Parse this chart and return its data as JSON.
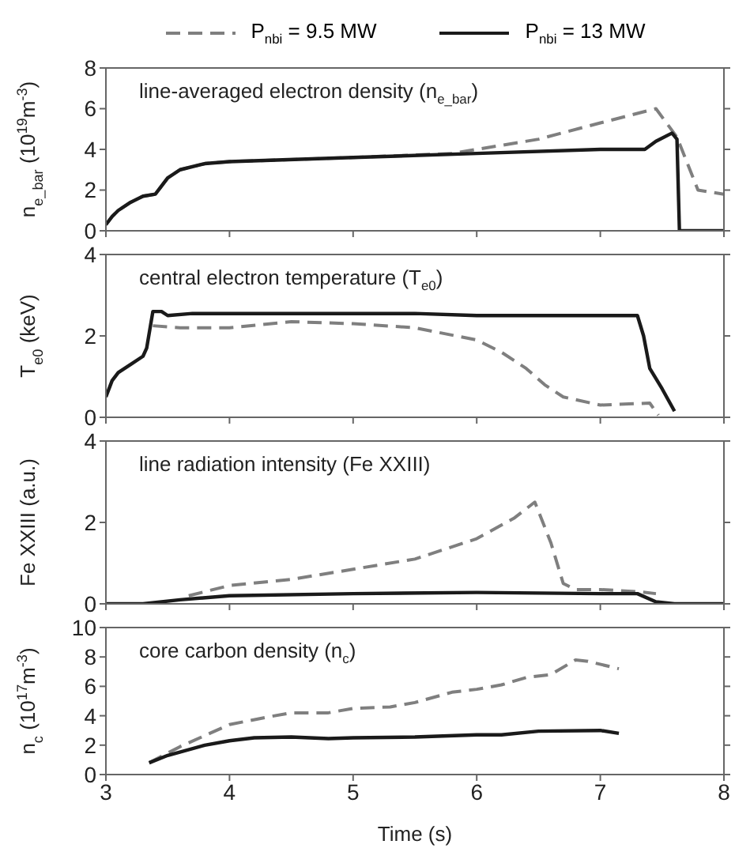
{
  "chart_data": [
    {
      "type": "line",
      "legend": "top",
      "ylabel": "n$_{e_bar}$ (10$^{19}$m$^{-3}$)",
      "annotations": [
        "line-averaged electron density (n$_{e_bar}$)"
      ],
      "xlim": [
        3,
        8
      ],
      "xticks": [
        3,
        4,
        5,
        6,
        7,
        8
      ],
      "ylim": [
        0,
        8
      ],
      "yticks": [
        0,
        2,
        4,
        6,
        8
      ],
      "tick_labels": "y",
      "series": [
        {
          "name": "P$_{nbi}$ = 9.5 MW",
          "color": "#7f7f7f",
          "line_style": "dashed",
          "x": [
            3.0,
            3.05,
            3.1,
            3.2,
            3.3,
            3.4,
            3.45,
            3.5,
            3.6,
            3.8,
            4.0,
            5.0,
            5.8,
            6.0,
            6.5,
            7.0,
            7.45,
            7.62,
            7.79,
            8.0
          ],
          "values": [
            0.3,
            0.7,
            1.0,
            1.4,
            1.7,
            1.8,
            2.2,
            2.6,
            3.0,
            3.3,
            3.4,
            3.6,
            3.8,
            4.0,
            4.5,
            5.3,
            6.0,
            4.6,
            2.0,
            1.8
          ]
        },
        {
          "name": "P$_{nbi}$ = 13 MW",
          "color": "#1a1a1a",
          "line_style": "solid",
          "x": [
            3.0,
            3.05,
            3.1,
            3.2,
            3.3,
            3.4,
            3.45,
            3.5,
            3.6,
            3.8,
            4.0,
            5.0,
            6.0,
            7.0,
            7.36,
            7.45,
            7.58,
            7.62,
            7.64,
            8.0
          ],
          "values": [
            0.3,
            0.7,
            1.0,
            1.4,
            1.7,
            1.8,
            2.2,
            2.6,
            3.0,
            3.3,
            3.4,
            3.6,
            3.8,
            4.0,
            4.0,
            4.4,
            4.8,
            4.5,
            0,
            0
          ]
        }
      ]
    },
    {
      "type": "line",
      "ylabel": "T$_{e0}$ (keV)",
      "annotations": [
        "central electron temperature (T$_{e0}$)"
      ],
      "xlim": [
        3,
        8
      ],
      "xticks": [
        3,
        4,
        5,
        6,
        7,
        8
      ],
      "ylim": [
        0,
        4
      ],
      "yticks": [
        0,
        2,
        4
      ],
      "tick_labels": "y",
      "series": [
        {
          "color": "#7f7f7f",
          "line_style": "dashed",
          "x": [
            3.38,
            3.6,
            4.0,
            4.5,
            5.0,
            5.5,
            6.0,
            6.2,
            6.4,
            6.55,
            6.7,
            7.0,
            7.4,
            7.47
          ],
          "values": [
            2.25,
            2.2,
            2.2,
            2.35,
            2.3,
            2.2,
            1.9,
            1.6,
            1.2,
            0.8,
            0.5,
            0.3,
            0.35,
            0.05
          ]
        },
        {
          "color": "#1a1a1a",
          "line_style": "solid",
          "x": [
            3.0,
            3.05,
            3.1,
            3.2,
            3.3,
            3.33,
            3.38,
            3.45,
            3.5,
            3.7,
            4.0,
            4.5,
            5.0,
            5.5,
            6.0,
            6.5,
            7.0,
            7.3,
            7.35,
            7.4,
            7.5,
            7.6
          ],
          "values": [
            0.5,
            0.9,
            1.1,
            1.3,
            1.5,
            1.7,
            2.6,
            2.6,
            2.5,
            2.55,
            2.55,
            2.55,
            2.55,
            2.55,
            2.5,
            2.5,
            2.5,
            2.5,
            2.0,
            1.2,
            0.7,
            0.15
          ]
        }
      ]
    },
    {
      "type": "line",
      "ylabel": "Fe XXIII (a.u.)",
      "annotations": [
        "line radiation intensity (Fe XXIII)"
      ],
      "xlim": [
        3,
        8
      ],
      "xticks": [
        3,
        4,
        5,
        6,
        7,
        8
      ],
      "ylim": [
        0,
        4
      ],
      "yticks": [
        0,
        2,
        4
      ],
      "tick_labels": "y",
      "series": [
        {
          "color": "#7f7f7f",
          "line_style": "dashed",
          "x": [
            3.67,
            4.0,
            4.5,
            5.0,
            5.5,
            6.0,
            6.3,
            6.47,
            6.6,
            6.7,
            6.8,
            7.0,
            7.3,
            7.45
          ],
          "values": [
            0.2,
            0.45,
            0.6,
            0.85,
            1.1,
            1.6,
            2.1,
            2.5,
            1.5,
            0.5,
            0.35,
            0.35,
            0.3,
            0.25
          ]
        },
        {
          "color": "#1a1a1a",
          "line_style": "solid",
          "x": [
            3.0,
            3.3,
            3.6,
            4.0,
            5.0,
            6.0,
            7.0,
            7.3,
            7.45,
            7.6,
            8.0
          ],
          "values": [
            0,
            0,
            0.1,
            0.2,
            0.25,
            0.28,
            0.25,
            0.25,
            0.05,
            0,
            0
          ]
        }
      ]
    },
    {
      "type": "line",
      "xlabel": "Time (s)",
      "ylabel": "n$_{c}$ (10$^{17}$m$^{-3}$)",
      "annotations": [
        "core carbon density (n$_{c}$)"
      ],
      "xlim": [
        3,
        8
      ],
      "xticks": [
        3,
        4,
        5,
        6,
        7,
        8
      ],
      "ylim": [
        0,
        10
      ],
      "yticks": [
        0,
        2,
        4,
        6,
        8,
        10
      ],
      "series": [
        {
          "color": "#7f7f7f",
          "line_style": "dashed",
          "x": [
            3.35,
            3.6,
            4.0,
            4.3,
            4.5,
            4.8,
            5.0,
            5.3,
            5.5,
            5.8,
            6.0,
            6.2,
            6.4,
            6.6,
            6.8,
            6.9,
            7.15
          ],
          "values": [
            0.8,
            1.9,
            3.4,
            3.9,
            4.2,
            4.2,
            4.5,
            4.6,
            4.9,
            5.6,
            5.8,
            6.1,
            6.6,
            6.8,
            7.8,
            7.7,
            7.2
          ]
        },
        {
          "color": "#1a1a1a",
          "line_style": "solid",
          "x": [
            3.35,
            3.5,
            3.8,
            4.0,
            4.2,
            4.5,
            4.8,
            5.0,
            5.5,
            6.0,
            6.2,
            6.5,
            7.0,
            7.15
          ],
          "values": [
            0.8,
            1.3,
            2.0,
            2.3,
            2.5,
            2.55,
            2.45,
            2.5,
            2.55,
            2.7,
            2.7,
            2.95,
            3.0,
            2.8
          ]
        }
      ]
    }
  ]
}
